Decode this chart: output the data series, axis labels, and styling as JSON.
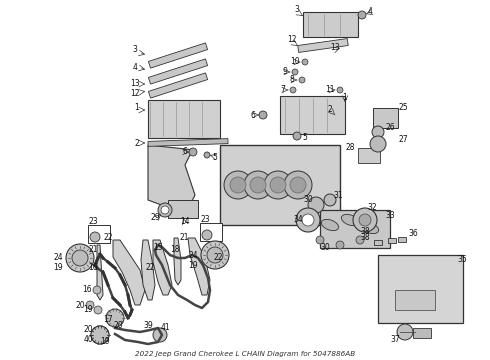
{
  "title": "2022 Jeep Grand Cherokee L CHAIN Diagram for 5047886AB",
  "bg": "#ffffff",
  "fg": "#222222",
  "fig_w": 4.9,
  "fig_h": 3.6,
  "dpi": 100,
  "lw_thin": 0.5,
  "lw_med": 0.9,
  "lw_thick": 1.4,
  "parts_gray": "#bbbbbb",
  "outline": "#333333",
  "label_fs": 5.5,
  "title_fs": 5.2
}
